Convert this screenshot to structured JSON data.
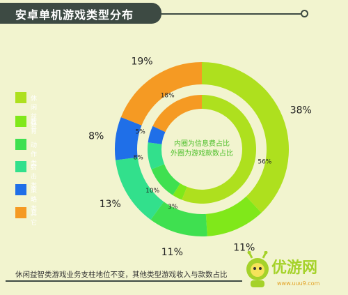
{
  "header": {
    "title": "安卓单机游戏类型分布"
  },
  "center_note": {
    "line1": "内圈为信息费占比",
    "line2": "外圈为游戏款数占比"
  },
  "footer": {
    "text": "休闲益智类游戏业务支柱地位不变，其他类型游戏收入与款数占比"
  },
  "logo": {
    "text": "优游网",
    "url": "www.uuu9.com"
  },
  "chart_data": {
    "type": "donut",
    "categories": [
      "休闲益智",
      "教育",
      "动作类",
      "射击类",
      "策略类",
      "其它"
    ],
    "colors": [
      "#aee01e",
      "#80e81a",
      "#3fe050",
      "#32e08c",
      "#1f6fe8",
      "#f59a23"
    ],
    "outer_ring": {
      "name": "外圈为游戏款数占比",
      "values": [
        38,
        11,
        11,
        13,
        8,
        19
      ],
      "labels": [
        "38%",
        "11%",
        "11%",
        "13%",
        "8%",
        "19%"
      ]
    },
    "inner_ring": {
      "name": "内圈为信息费占比",
      "values": [
        56,
        3,
        10,
        8,
        5,
        18
      ],
      "labels": [
        "56%",
        "3%",
        "10%",
        "8%",
        "5%",
        "18%"
      ]
    }
  }
}
